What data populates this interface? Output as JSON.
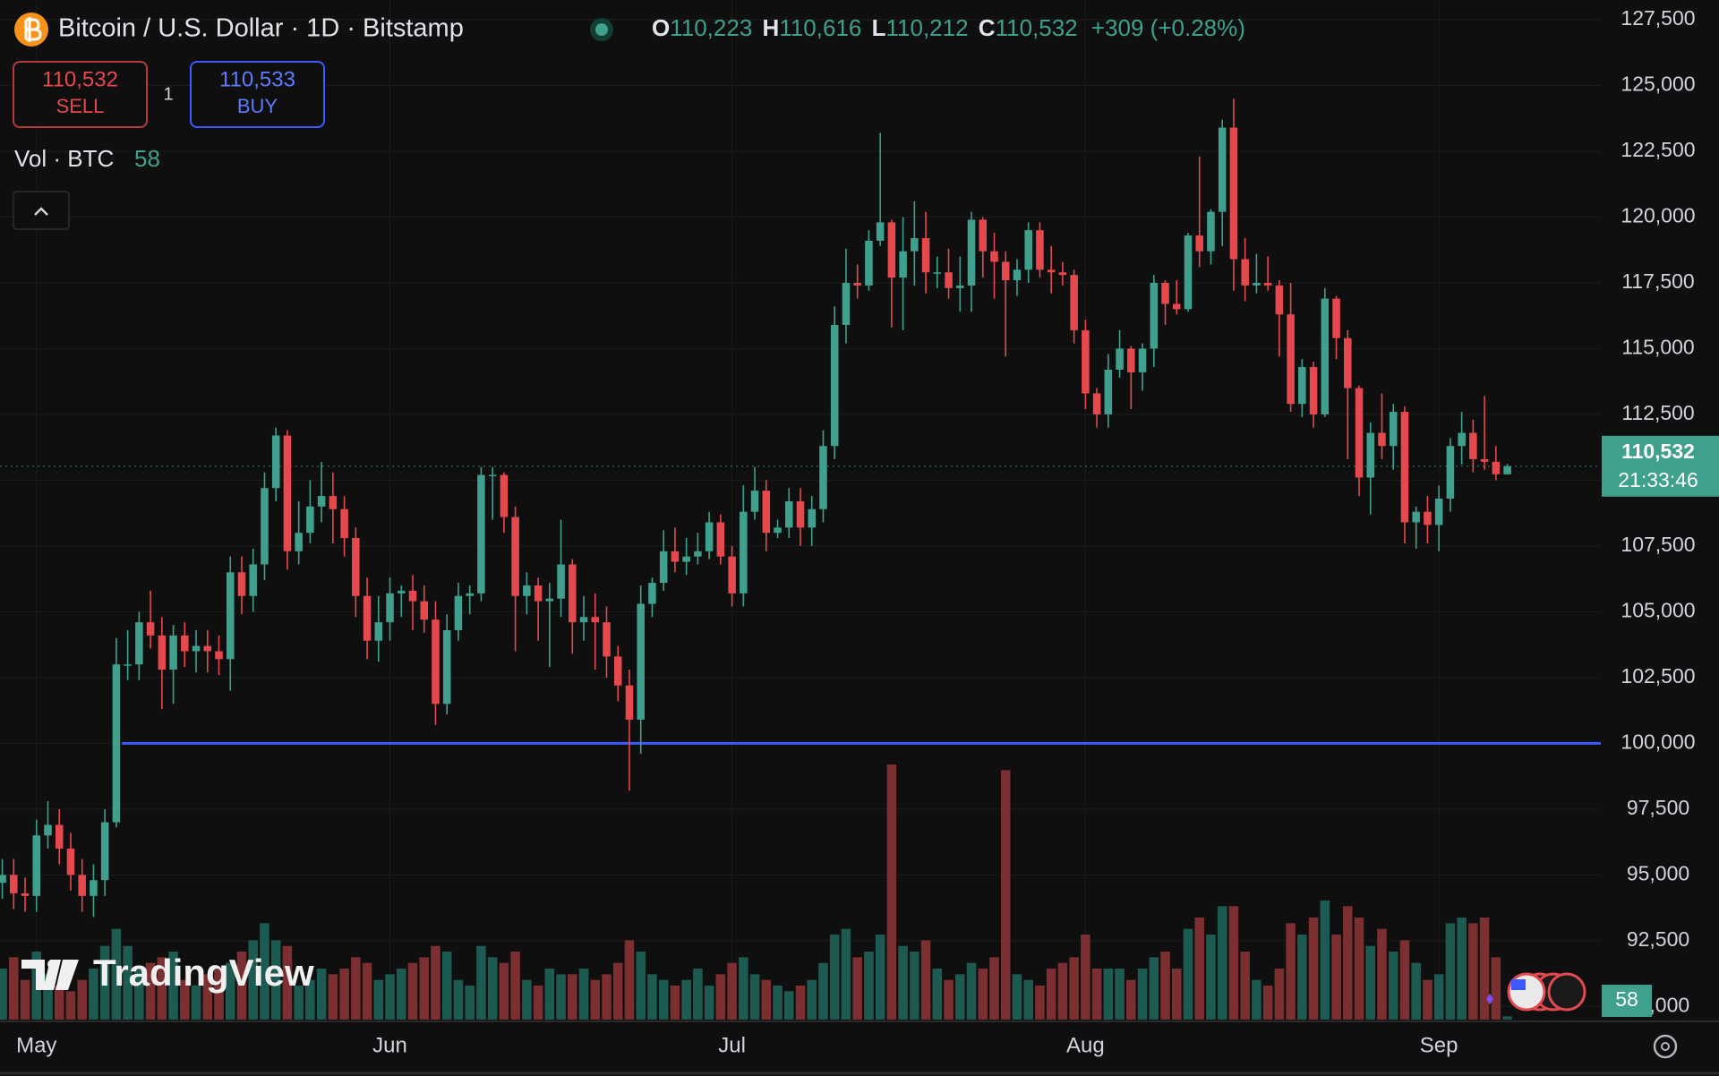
{
  "header": {
    "title": "Bitcoin / U.S. Dollar · 1D · Bitstamp",
    "ohlc": [
      {
        "label": "O",
        "value": "110,223"
      },
      {
        "label": "H",
        "value": "110,616"
      },
      {
        "label": "L",
        "value": "110,212"
      },
      {
        "label": "C",
        "value": "110,532"
      }
    ],
    "change": "+309 (+0.28%)"
  },
  "trade": {
    "sell_price": "110,532",
    "sell": "SELL",
    "quantity": "1",
    "buy_price": "110,533",
    "buy": "BUY"
  },
  "watermark": "TradingView",
  "chart_data": {
    "type": "candlestick",
    "up_color": "#3fa08d",
    "down_color": "#e5484d",
    "up_volume_color": "#1d5a51",
    "down_volume_color": "#7b2f31",
    "volume_title": "Vol · BTC",
    "last_label": {
      "price": "110,532",
      "countdown": "21:33:46"
    },
    "horizontal_line": {
      "value": 100000,
      "color": "#3d5afe"
    },
    "xlim": [
      -0.2,
      140.2
    ],
    "xticks": [
      {
        "value": 3,
        "label": "May"
      },
      {
        "value": 34,
        "label": "Jun"
      },
      {
        "value": 64,
        "label": "Jul"
      },
      {
        "value": 95,
        "label": "Aug"
      },
      {
        "value": 126,
        "label": "Sep"
      }
    ],
    "ylim": [
      89500,
      128250
    ],
    "yticks": [
      {
        "value": 90000,
        "label": "90,000"
      },
      {
        "value": 92500,
        "label": "92,500"
      },
      {
        "value": 95000,
        "label": "95,000"
      },
      {
        "value": 97500,
        "label": "97,500"
      },
      {
        "value": 100000,
        "label": "100,000"
      },
      {
        "value": 102500,
        "label": "102,500"
      },
      {
        "value": 105000,
        "label": "105,000"
      },
      {
        "value": 107500,
        "label": "107,500"
      },
      {
        "value": 110000,
        "label": "110,000"
      },
      {
        "value": 112500,
        "label": "112,500"
      },
      {
        "value": 115000,
        "label": "115,000"
      },
      {
        "value": 117500,
        "label": "117,500"
      },
      {
        "value": 120000,
        "label": "120,000"
      },
      {
        "value": 122500,
        "label": "122,500"
      },
      {
        "value": 125000,
        "label": "125,000"
      },
      {
        "value": 127500,
        "label": "127,500"
      }
    ],
    "grid": true,
    "open": [
      94700,
      95000,
      94300,
      94200,
      96500,
      96900,
      96000,
      95000,
      94200,
      94800,
      97000,
      103000,
      103000,
      104600,
      104100,
      102800,
      104100,
      103500,
      103700,
      103500,
      103200,
      106500,
      105600,
      106800,
      109700,
      111700,
      107300,
      108000,
      109000,
      109400,
      108900,
      107800,
      105600,
      103900,
      104600,
      105700,
      105800,
      105400,
      104700,
      101500,
      104300,
      105600,
      105700,
      110200,
      110200,
      108600,
      105600,
      106000,
      105400,
      105500,
      106800,
      104600,
      104800,
      104600,
      103300,
      102200,
      100900,
      105300,
      106100,
      107300,
      106900,
      107100,
      107300,
      108400,
      107100,
      105700,
      108800,
      109600,
      108000,
      108200,
      109200,
      108200,
      108900,
      111300,
      115900,
      117500,
      117400,
      119100,
      119800,
      117700,
      118700,
      119200,
      117900,
      117900,
      117300,
      117400,
      119900,
      118700,
      118300,
      117600,
      118000,
      119500,
      118000,
      117900,
      117800,
      115700,
      113300,
      112500,
      114200,
      115000,
      114100,
      115000,
      117500,
      116700,
      116500,
      119300,
      118700,
      120200,
      123400,
      118400,
      117400,
      117500,
      117400,
      116300,
      112900,
      114300,
      112500,
      116900,
      115400,
      113500,
      110100,
      111800,
      111300,
      112600,
      108400,
      108800,
      108300,
      109300,
      111300,
      111800,
      110800,
      110700,
      110223
    ],
    "high": [
      95600,
      95600,
      94900,
      97100,
      97800,
      97500,
      96600,
      95600,
      95400,
      97500,
      104000,
      104300,
      105000,
      105800,
      104800,
      104500,
      104600,
      104300,
      104300,
      104100,
      107100,
      107100,
      107400,
      110300,
      112000,
      111900,
      109200,
      110000,
      110700,
      110300,
      109400,
      108200,
      106300,
      105600,
      106300,
      106000,
      106400,
      106000,
      105400,
      104900,
      106100,
      106000,
      110500,
      110500,
      110300,
      109000,
      106500,
      106300,
      106100,
      108500,
      107000,
      105600,
      105700,
      105200,
      103700,
      102800,
      106000,
      106300,
      108100,
      108200,
      107800,
      108000,
      108800,
      108700,
      107500,
      109800,
      110500,
      110000,
      108500,
      109700,
      109700,
      109400,
      111900,
      116600,
      118800,
      118200,
      119500,
      123200,
      119900,
      120000,
      120600,
      120200,
      118500,
      118800,
      118500,
      120200,
      120000,
      119400,
      118700,
      118400,
      119800,
      119800,
      118900,
      118300,
      118000,
      116100,
      113500,
      114800,
      115700,
      115100,
      115200,
      117800,
      117600,
      117600,
      119400,
      122300,
      120300,
      123700,
      124500,
      119200,
      118600,
      118500,
      117600,
      117500,
      114600,
      114500,
      117300,
      117000,
      115700,
      113600,
      112200,
      113300,
      112900,
      112800,
      109000,
      109400,
      109800,
      111600,
      112600,
      112300,
      113200,
      111300,
      110616
    ],
    "low": [
      94100,
      93700,
      93600,
      93600,
      96000,
      95400,
      94400,
      93600,
      93400,
      94200,
      96800,
      102400,
      102400,
      103600,
      101300,
      101500,
      102900,
      102700,
      102700,
      102600,
      102000,
      104900,
      105000,
      106200,
      109200,
      106600,
      106800,
      107600,
      108400,
      107600,
      107100,
      104800,
      103200,
      103100,
      103900,
      104800,
      104300,
      104200,
      100700,
      101100,
      103900,
      104900,
      105400,
      108500,
      108000,
      103500,
      104900,
      103900,
      102900,
      104800,
      103400,
      103900,
      102800,
      102500,
      101600,
      98200,
      99600,
      104800,
      105800,
      106500,
      106400,
      106800,
      107000,
      106800,
      105200,
      105200,
      108500,
      107300,
      107800,
      107800,
      107500,
      107500,
      108400,
      110800,
      115200,
      116900,
      117200,
      118900,
      115800,
      115700,
      117400,
      117100,
      117300,
      116900,
      116400,
      116400,
      117700,
      116900,
      114700,
      117000,
      117500,
      117700,
      117100,
      117400,
      115200,
      112700,
      112000,
      112000,
      113900,
      112700,
      113400,
      114300,
      115900,
      116300,
      116400,
      118100,
      118200,
      118900,
      117200,
      116800,
      117100,
      117200,
      114700,
      112600,
      112400,
      112000,
      112400,
      114600,
      110800,
      109400,
      108700,
      110800,
      110400,
      107600,
      107400,
      107600,
      107300,
      108800,
      110600,
      110300,
      110400,
      110000,
      110212
    ],
    "close": [
      95000,
      94300,
      94200,
      96500,
      96900,
      96000,
      95000,
      94200,
      94800,
      97000,
      103000,
      103000,
      104600,
      104100,
      102800,
      104100,
      103500,
      103700,
      103500,
      103200,
      106500,
      105600,
      106800,
      109700,
      111700,
      107300,
      108000,
      109000,
      109400,
      108900,
      107800,
      105600,
      103900,
      104600,
      105700,
      105800,
      105400,
      104700,
      101500,
      104300,
      105600,
      105700,
      110200,
      110200,
      108600,
      105600,
      106000,
      105400,
      105500,
      106800,
      104600,
      104800,
      104600,
      103300,
      102200,
      100900,
      105300,
      106100,
      107300,
      106900,
      107100,
      107300,
      108400,
      107100,
      105700,
      108800,
      109600,
      108000,
      108200,
      109200,
      108200,
      108900,
      111300,
      115900,
      117500,
      117400,
      119100,
      119800,
      117700,
      118700,
      119200,
      117900,
      117900,
      117300,
      117400,
      119900,
      118700,
      118300,
      117600,
      118000,
      119500,
      118000,
      117900,
      117800,
      115700,
      113300,
      112500,
      114200,
      115000,
      114100,
      115000,
      117500,
      116700,
      116500,
      119300,
      118700,
      120200,
      123400,
      118400,
      117400,
      117500,
      117400,
      116300,
      112900,
      114300,
      112500,
      116900,
      115400,
      113500,
      110100,
      111800,
      111300,
      112600,
      108400,
      108800,
      108300,
      109300,
      111300,
      111800,
      110800,
      110700,
      110223,
      110532
    ],
    "volume": [
      900,
      1100,
      700,
      1200,
      800,
      600,
      500,
      700,
      900,
      1300,
      1600,
      1300,
      900,
      1000,
      1100,
      1200,
      700,
      600,
      800,
      900,
      1000,
      1200,
      1400,
      1700,
      1400,
      1300,
      600,
      700,
      900,
      800,
      900,
      1100,
      1000,
      700,
      800,
      900,
      1000,
      1100,
      1300,
      1200,
      700,
      600,
      1300,
      1100,
      1000,
      1200,
      700,
      600,
      900,
      800,
      800,
      900,
      700,
      800,
      1000,
      1400,
      1200,
      800,
      700,
      600,
      700,
      900,
      600,
      800,
      1000,
      1100,
      800,
      700,
      600,
      500,
      600,
      700,
      1000,
      1500,
      1600,
      1100,
      1200,
      1500,
      4500,
      1300,
      1200,
      1400,
      900,
      700,
      800,
      1000,
      900,
      1100,
      4400,
      800,
      700,
      600,
      900,
      1000,
      1100,
      1500,
      900,
      900,
      900,
      700,
      900,
      1100,
      1200,
      900,
      1600,
      1800,
      1500,
      2000,
      2000,
      1200,
      700,
      600,
      900,
      1700,
      1500,
      1800,
      2100,
      1500,
      2000,
      1800,
      1300,
      1600,
      1200,
      1400,
      1000,
      700,
      800,
      1700,
      1800,
      1700,
      1800,
      1100,
      58
    ]
  }
}
